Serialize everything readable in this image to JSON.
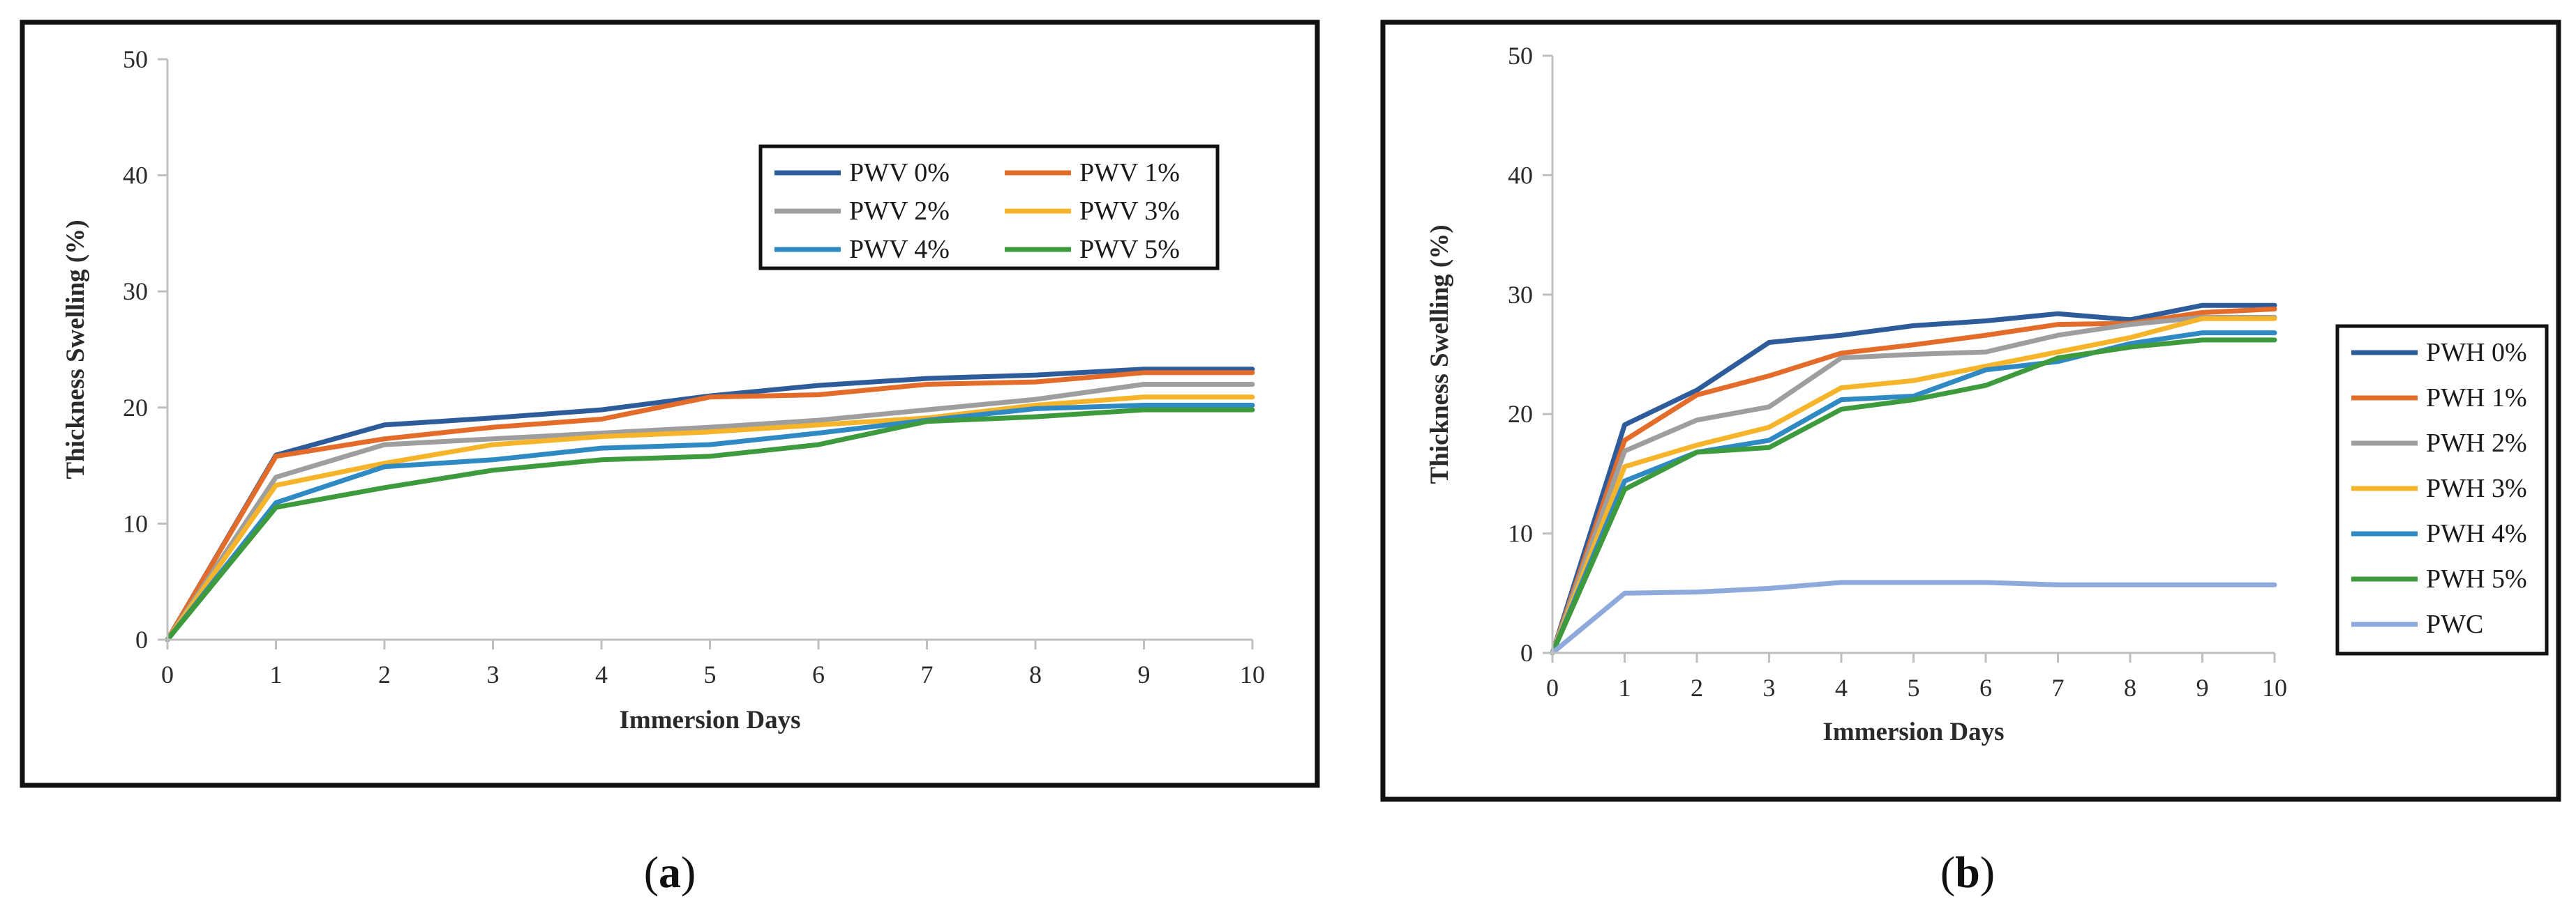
{
  "chart_data": [
    {
      "type": "line",
      "panel_label": "a",
      "xlabel": "Immersion Days",
      "ylabel": "Thickness Swelling (%)",
      "xlim": [
        0,
        10
      ],
      "ylim": [
        0,
        50
      ],
      "x_ticks": [
        0,
        1,
        2,
        3,
        4,
        5,
        6,
        7,
        8,
        9,
        10
      ],
      "y_ticks": [
        0,
        10,
        20,
        30,
        40,
        50
      ],
      "grid": false,
      "legend_position": "upper-right inside plot, 2 columns",
      "x": [
        0,
        1,
        2,
        3,
        4,
        5,
        6,
        7,
        8,
        9,
        10
      ],
      "series": [
        {
          "name": "PWV 0%",
          "color": "#2e5c9a",
          "values": [
            0,
            15.9,
            18.5,
            19.1,
            19.8,
            21.0,
            21.9,
            22.5,
            22.8,
            23.3,
            23.3
          ]
        },
        {
          "name": "PWV 1%",
          "color": "#e46c2a",
          "values": [
            0,
            15.8,
            17.3,
            18.3,
            19.0,
            20.9,
            21.1,
            22.0,
            22.2,
            23.0,
            23.0
          ]
        },
        {
          "name": "PWV 2%",
          "color": "#9e9e9e",
          "values": [
            0,
            14.0,
            16.8,
            17.3,
            17.8,
            18.3,
            18.9,
            19.8,
            20.7,
            22.0,
            22.0
          ]
        },
        {
          "name": "PWV 3%",
          "color": "#f5b42a",
          "values": [
            0,
            13.3,
            15.2,
            16.8,
            17.5,
            17.9,
            18.5,
            19.1,
            20.2,
            20.9,
            20.9
          ]
        },
        {
          "name": "PWV 4%",
          "color": "#2f8ac4",
          "values": [
            0,
            11.8,
            14.9,
            15.5,
            16.5,
            16.8,
            17.8,
            18.9,
            19.9,
            20.2,
            20.2
          ]
        },
        {
          "name": "PWV 5%",
          "color": "#3d9a3d",
          "values": [
            0,
            11.4,
            13.1,
            14.6,
            15.5,
            15.8,
            16.8,
            18.8,
            19.2,
            19.8,
            19.8
          ]
        }
      ]
    },
    {
      "type": "line",
      "panel_label": "b",
      "xlabel": "Immersion Days",
      "ylabel": "Thickness Swelling (%)",
      "xlim": [
        0,
        10
      ],
      "ylim": [
        0,
        50
      ],
      "x_ticks": [
        0,
        1,
        2,
        3,
        4,
        5,
        6,
        7,
        8,
        9,
        10
      ],
      "y_ticks": [
        0,
        10,
        20,
        30,
        40,
        50
      ],
      "grid": false,
      "legend_position": "right, outside plot, 1 column",
      "x": [
        0,
        1,
        2,
        3,
        4,
        5,
        6,
        7,
        8,
        9,
        10
      ],
      "series": [
        {
          "name": "PWH 0%",
          "color": "#2e5c9a",
          "values": [
            0,
            19.1,
            22.0,
            26.0,
            26.6,
            27.4,
            27.8,
            28.4,
            27.9,
            29.1,
            29.1
          ]
        },
        {
          "name": "PWH 1%",
          "color": "#e46c2a",
          "values": [
            0,
            17.8,
            21.6,
            23.2,
            25.1,
            25.8,
            26.6,
            27.5,
            27.6,
            28.5,
            28.8
          ]
        },
        {
          "name": "PWH 2%",
          "color": "#9e9e9e",
          "values": [
            0,
            16.9,
            19.5,
            20.6,
            24.7,
            25.0,
            25.2,
            26.6,
            27.5,
            28.1,
            28.1
          ]
        },
        {
          "name": "PWH 3%",
          "color": "#f5b42a",
          "values": [
            0,
            15.6,
            17.4,
            18.9,
            22.2,
            22.8,
            24.0,
            25.2,
            26.4,
            28.0,
            28.0
          ]
        },
        {
          "name": "PWH 4%",
          "color": "#2f8ac4",
          "values": [
            0,
            14.4,
            16.8,
            17.8,
            21.2,
            21.5,
            23.7,
            24.4,
            25.9,
            26.8,
            26.8
          ]
        },
        {
          "name": "PWH 5%",
          "color": "#3d9a3d",
          "values": [
            0,
            13.7,
            16.8,
            17.2,
            20.4,
            21.2,
            22.4,
            24.7,
            25.6,
            26.2,
            26.2
          ]
        },
        {
          "name": "PWC",
          "color": "#8eaadc",
          "values": [
            0,
            5.0,
            5.1,
            5.4,
            5.9,
            5.9,
            5.9,
            5.7,
            5.7,
            5.7,
            5.7
          ]
        }
      ]
    }
  ]
}
